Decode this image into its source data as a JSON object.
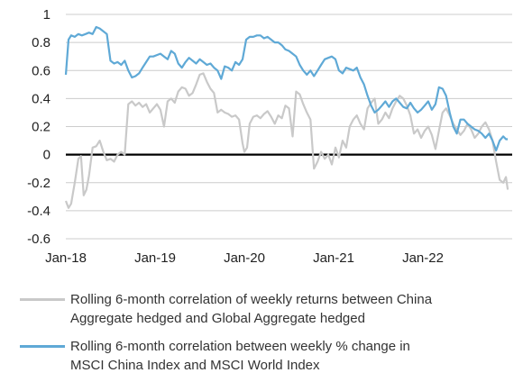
{
  "chart_data": {
    "type": "line",
    "title": "",
    "xlabel": "",
    "ylabel": "",
    "ylim": [
      -0.6,
      1
    ],
    "yticks": [
      "1",
      "0.8",
      "0.6",
      "0.4",
      "0.2",
      "0",
      "-0.2",
      "-0.4",
      "-0.6"
    ],
    "xticks": [
      "Jan-18",
      "Jan-19",
      "Jan-20",
      "Jan-21",
      "Jan-22"
    ],
    "xrange": [
      2018.0,
      2022.95
    ],
    "grid": "horizontal",
    "zero_line": true,
    "legend_position": "bottom",
    "series": [
      {
        "key": "bond",
        "color": "#c9c9c9",
        "label_lines": [
          "Rolling 6-month correlation of weekly returns between China",
          "Aggregate hedged and Global Aggregate hedged"
        ],
        "points": [
          [
            2018.0,
            -0.33
          ],
          [
            2018.03,
            -0.38
          ],
          [
            2018.06,
            -0.35
          ],
          [
            2018.1,
            -0.2
          ],
          [
            2018.14,
            -0.03
          ],
          [
            2018.17,
            -0.01
          ],
          [
            2018.2,
            -0.29
          ],
          [
            2018.23,
            -0.25
          ],
          [
            2018.26,
            -0.15
          ],
          [
            2018.3,
            0.05
          ],
          [
            2018.34,
            0.06
          ],
          [
            2018.38,
            0.1
          ],
          [
            2018.42,
            0.02
          ],
          [
            2018.46,
            -0.04
          ],
          [
            2018.5,
            -0.03
          ],
          [
            2018.54,
            -0.05
          ],
          [
            2018.58,
            0.0
          ],
          [
            2018.62,
            0.02
          ],
          [
            2018.66,
            0.0
          ],
          [
            2018.7,
            0.36
          ],
          [
            2018.74,
            0.38
          ],
          [
            2018.78,
            0.35
          ],
          [
            2018.82,
            0.37
          ],
          [
            2018.86,
            0.34
          ],
          [
            2018.9,
            0.36
          ],
          [
            2018.94,
            0.3
          ],
          [
            2018.98,
            0.33
          ],
          [
            2019.02,
            0.36
          ],
          [
            2019.06,
            0.32
          ],
          [
            2019.1,
            0.2
          ],
          [
            2019.14,
            0.38
          ],
          [
            2019.18,
            0.4
          ],
          [
            2019.22,
            0.37
          ],
          [
            2019.26,
            0.45
          ],
          [
            2019.3,
            0.48
          ],
          [
            2019.34,
            0.47
          ],
          [
            2019.38,
            0.42
          ],
          [
            2019.42,
            0.44
          ],
          [
            2019.46,
            0.5
          ],
          [
            2019.5,
            0.57
          ],
          [
            2019.54,
            0.58
          ],
          [
            2019.58,
            0.52
          ],
          [
            2019.62,
            0.47
          ],
          [
            2019.66,
            0.44
          ],
          [
            2019.7,
            0.3
          ],
          [
            2019.74,
            0.32
          ],
          [
            2019.78,
            0.3
          ],
          [
            2019.82,
            0.29
          ],
          [
            2019.86,
            0.27
          ],
          [
            2019.9,
            0.28
          ],
          [
            2019.94,
            0.25
          ],
          [
            2019.98,
            0.08
          ],
          [
            2020.0,
            0.02
          ],
          [
            2020.03,
            0.05
          ],
          [
            2020.06,
            0.22
          ],
          [
            2020.1,
            0.27
          ],
          [
            2020.14,
            0.28
          ],
          [
            2020.18,
            0.26
          ],
          [
            2020.22,
            0.29
          ],
          [
            2020.26,
            0.31
          ],
          [
            2020.3,
            0.27
          ],
          [
            2020.34,
            0.22
          ],
          [
            2020.38,
            0.28
          ],
          [
            2020.42,
            0.26
          ],
          [
            2020.46,
            0.35
          ],
          [
            2020.5,
            0.33
          ],
          [
            2020.54,
            0.13
          ],
          [
            2020.58,
            0.45
          ],
          [
            2020.62,
            0.43
          ],
          [
            2020.66,
            0.36
          ],
          [
            2020.7,
            0.3
          ],
          [
            2020.74,
            0.25
          ],
          [
            2020.78,
            -0.1
          ],
          [
            2020.82,
            -0.05
          ],
          [
            2020.86,
            0.02
          ],
          [
            2020.9,
            -0.03
          ],
          [
            2020.94,
            0.0
          ],
          [
            2020.98,
            -0.07
          ],
          [
            2021.02,
            0.05
          ],
          [
            2021.06,
            -0.02
          ],
          [
            2021.1,
            0.1
          ],
          [
            2021.14,
            0.05
          ],
          [
            2021.18,
            0.2
          ],
          [
            2021.22,
            0.25
          ],
          [
            2021.26,
            0.28
          ],
          [
            2021.3,
            0.22
          ],
          [
            2021.34,
            0.18
          ],
          [
            2021.38,
            0.33
          ],
          [
            2021.42,
            0.37
          ],
          [
            2021.46,
            0.4
          ],
          [
            2021.5,
            0.22
          ],
          [
            2021.54,
            0.25
          ],
          [
            2021.58,
            0.3
          ],
          [
            2021.62,
            0.26
          ],
          [
            2021.66,
            0.33
          ],
          [
            2021.7,
            0.38
          ],
          [
            2021.74,
            0.42
          ],
          [
            2021.78,
            0.4
          ],
          [
            2021.82,
            0.35
          ],
          [
            2021.86,
            0.28
          ],
          [
            2021.9,
            0.15
          ],
          [
            2021.94,
            0.18
          ],
          [
            2021.98,
            0.12
          ],
          [
            2022.02,
            0.17
          ],
          [
            2022.06,
            0.2
          ],
          [
            2022.1,
            0.14
          ],
          [
            2022.14,
            0.04
          ],
          [
            2022.18,
            0.17
          ],
          [
            2022.22,
            0.3
          ],
          [
            2022.26,
            0.33
          ],
          [
            2022.3,
            0.28
          ],
          [
            2022.34,
            0.22
          ],
          [
            2022.38,
            0.18
          ],
          [
            2022.42,
            0.14
          ],
          [
            2022.46,
            0.17
          ],
          [
            2022.5,
            0.22
          ],
          [
            2022.54,
            0.18
          ],
          [
            2022.58,
            0.12
          ],
          [
            2022.62,
            0.15
          ],
          [
            2022.66,
            0.2
          ],
          [
            2022.7,
            0.23
          ],
          [
            2022.74,
            0.18
          ],
          [
            2022.78,
            0.1
          ],
          [
            2022.82,
            -0.05
          ],
          [
            2022.86,
            -0.18
          ],
          [
            2022.9,
            -0.2
          ],
          [
            2022.93,
            -0.16
          ],
          [
            2022.95,
            -0.25
          ]
        ]
      },
      {
        "key": "equity",
        "color": "#5fa9d6",
        "label_lines": [
          "Rolling 6-month correlation between weekly % change in",
          "MSCI China Index and MSCI World Index"
        ],
        "points": [
          [
            2018.0,
            0.57
          ],
          [
            2018.03,
            0.82
          ],
          [
            2018.06,
            0.85
          ],
          [
            2018.1,
            0.84
          ],
          [
            2018.14,
            0.86
          ],
          [
            2018.18,
            0.85
          ],
          [
            2018.22,
            0.86
          ],
          [
            2018.26,
            0.87
          ],
          [
            2018.3,
            0.86
          ],
          [
            2018.34,
            0.91
          ],
          [
            2018.38,
            0.9
          ],
          [
            2018.42,
            0.88
          ],
          [
            2018.46,
            0.86
          ],
          [
            2018.5,
            0.67
          ],
          [
            2018.54,
            0.65
          ],
          [
            2018.58,
            0.66
          ],
          [
            2018.62,
            0.64
          ],
          [
            2018.66,
            0.67
          ],
          [
            2018.7,
            0.6
          ],
          [
            2018.74,
            0.55
          ],
          [
            2018.78,
            0.56
          ],
          [
            2018.82,
            0.58
          ],
          [
            2018.86,
            0.62
          ],
          [
            2018.9,
            0.66
          ],
          [
            2018.94,
            0.7
          ],
          [
            2018.98,
            0.7
          ],
          [
            2019.02,
            0.71
          ],
          [
            2019.06,
            0.72
          ],
          [
            2019.1,
            0.7
          ],
          [
            2019.14,
            0.68
          ],
          [
            2019.18,
            0.74
          ],
          [
            2019.22,
            0.72
          ],
          [
            2019.26,
            0.65
          ],
          [
            2019.3,
            0.62
          ],
          [
            2019.34,
            0.66
          ],
          [
            2019.38,
            0.69
          ],
          [
            2019.42,
            0.67
          ],
          [
            2019.46,
            0.65
          ],
          [
            2019.5,
            0.68
          ],
          [
            2019.54,
            0.66
          ],
          [
            2019.58,
            0.64
          ],
          [
            2019.62,
            0.65
          ],
          [
            2019.66,
            0.62
          ],
          [
            2019.7,
            0.6
          ],
          [
            2019.74,
            0.54
          ],
          [
            2019.78,
            0.63
          ],
          [
            2019.82,
            0.62
          ],
          [
            2019.86,
            0.6
          ],
          [
            2019.9,
            0.66
          ],
          [
            2019.94,
            0.64
          ],
          [
            2019.98,
            0.68
          ],
          [
            2020.02,
            0.82
          ],
          [
            2020.06,
            0.84
          ],
          [
            2020.1,
            0.84
          ],
          [
            2020.14,
            0.85
          ],
          [
            2020.18,
            0.85
          ],
          [
            2020.22,
            0.83
          ],
          [
            2020.26,
            0.84
          ],
          [
            2020.3,
            0.82
          ],
          [
            2020.34,
            0.8
          ],
          [
            2020.38,
            0.8
          ],
          [
            2020.42,
            0.78
          ],
          [
            2020.46,
            0.75
          ],
          [
            2020.5,
            0.74
          ],
          [
            2020.54,
            0.72
          ],
          [
            2020.58,
            0.7
          ],
          [
            2020.62,
            0.64
          ],
          [
            2020.66,
            0.6
          ],
          [
            2020.7,
            0.57
          ],
          [
            2020.74,
            0.6
          ],
          [
            2020.78,
            0.56
          ],
          [
            2020.82,
            0.6
          ],
          [
            2020.86,
            0.64
          ],
          [
            2020.9,
            0.68
          ],
          [
            2020.94,
            0.69
          ],
          [
            2020.98,
            0.7
          ],
          [
            2021.02,
            0.68
          ],
          [
            2021.06,
            0.6
          ],
          [
            2021.1,
            0.58
          ],
          [
            2021.14,
            0.62
          ],
          [
            2021.18,
            0.61
          ],
          [
            2021.22,
            0.6
          ],
          [
            2021.26,
            0.62
          ],
          [
            2021.3,
            0.55
          ],
          [
            2021.34,
            0.5
          ],
          [
            2021.38,
            0.42
          ],
          [
            2021.42,
            0.35
          ],
          [
            2021.46,
            0.3
          ],
          [
            2021.5,
            0.32
          ],
          [
            2021.54,
            0.35
          ],
          [
            2021.58,
            0.38
          ],
          [
            2021.62,
            0.34
          ],
          [
            2021.66,
            0.38
          ],
          [
            2021.7,
            0.4
          ],
          [
            2021.74,
            0.37
          ],
          [
            2021.78,
            0.34
          ],
          [
            2021.82,
            0.33
          ],
          [
            2021.86,
            0.37
          ],
          [
            2021.9,
            0.33
          ],
          [
            2021.94,
            0.3
          ],
          [
            2021.98,
            0.32
          ],
          [
            2022.02,
            0.35
          ],
          [
            2022.06,
            0.38
          ],
          [
            2022.1,
            0.32
          ],
          [
            2022.14,
            0.36
          ],
          [
            2022.18,
            0.48
          ],
          [
            2022.22,
            0.47
          ],
          [
            2022.26,
            0.42
          ],
          [
            2022.3,
            0.3
          ],
          [
            2022.34,
            0.2
          ],
          [
            2022.38,
            0.15
          ],
          [
            2022.42,
            0.25
          ],
          [
            2022.46,
            0.25
          ],
          [
            2022.5,
            0.22
          ],
          [
            2022.54,
            0.2
          ],
          [
            2022.58,
            0.18
          ],
          [
            2022.62,
            0.17
          ],
          [
            2022.66,
            0.15
          ],
          [
            2022.7,
            0.12
          ],
          [
            2022.74,
            0.15
          ],
          [
            2022.78,
            0.1
          ],
          [
            2022.82,
            0.03
          ],
          [
            2022.86,
            0.1
          ],
          [
            2022.9,
            0.13
          ],
          [
            2022.93,
            0.11
          ],
          [
            2022.95,
            0.11
          ]
        ]
      }
    ]
  }
}
